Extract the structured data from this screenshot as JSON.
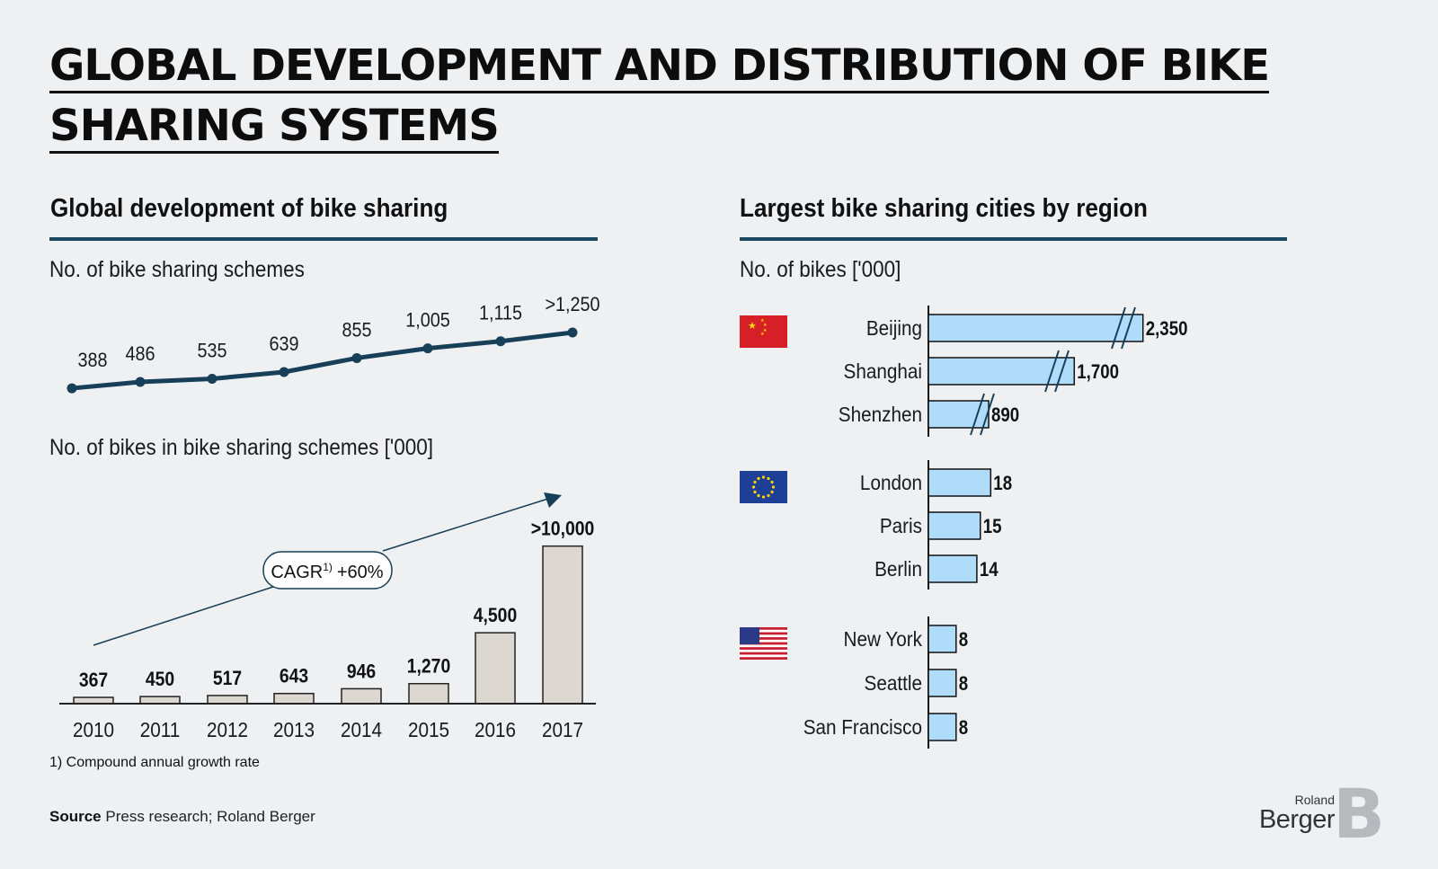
{
  "title_line1": "GLOBAL DEVELOPMENT AND DISTRIBUTION OF BIKE",
  "title_line2": "SHARING SYSTEMS",
  "left": {
    "heading": "Global development of bike sharing",
    "schemes_label": "No. of bike sharing schemes",
    "bikes_label": "No. of bikes in bike sharing schemes ['000]",
    "cagr_label": "CAGR",
    "cagr_sup": "1)",
    "cagr_value": "+60%",
    "footnote": "1) Compound annual growth rate"
  },
  "right": {
    "heading": "Largest bike sharing cities by region",
    "bikes_label": "No. of bikes ['000]"
  },
  "source_label": "Source",
  "source_text": "Press research; Roland Berger",
  "logo": {
    "roland": "Roland",
    "berger": "Berger",
    "mark": "B"
  },
  "colors": {
    "line": "#173f57",
    "bar_left": "#ddd7d2",
    "bar_right": "#aedcf9",
    "rule": "#1a4660"
  },
  "chart_data": [
    {
      "type": "line",
      "title": "No. of bike sharing schemes",
      "x": [
        "2010",
        "2011",
        "2012",
        "2013",
        "2014",
        "2015",
        "2016",
        "2017"
      ],
      "values": [
        388,
        486,
        535,
        639,
        855,
        1005,
        1115,
        1250
      ],
      "labels": [
        "388",
        "486",
        "535",
        "639",
        "855",
        "1,005",
        "1,115",
        ">1,250"
      ]
    },
    {
      "type": "bar",
      "title": "No. of bikes in bike sharing schemes ['000]",
      "categories": [
        "2010",
        "2011",
        "2012",
        "2013",
        "2014",
        "2015",
        "2016",
        "2017"
      ],
      "values": [
        367,
        450,
        517,
        643,
        946,
        1270,
        4500,
        10000
      ],
      "labels": [
        "367",
        "450",
        "517",
        "643",
        "946",
        "1,270",
        "4,500",
        ">10,000"
      ],
      "annotation": "CAGR 1) +60%"
    },
    {
      "type": "bar",
      "orientation": "horizontal",
      "title": "Largest bike sharing cities by region",
      "ylabel": "No. of bikes ['000]",
      "groups": [
        {
          "region": "China",
          "flag": "china-flag-icon",
          "cities": [
            {
              "name": "Beijing",
              "value": 2350,
              "label": "2,350",
              "axis_break": true
            },
            {
              "name": "Shanghai",
              "value": 1700,
              "label": "1,700",
              "axis_break": true
            },
            {
              "name": "Shenzhen",
              "value": 890,
              "label": "890",
              "axis_break": true
            }
          ]
        },
        {
          "region": "Europe",
          "flag": "eu-flag-icon",
          "cities": [
            {
              "name": "London",
              "value": 18,
              "label": "18"
            },
            {
              "name": "Paris",
              "value": 15,
              "label": "15"
            },
            {
              "name": "Berlin",
              "value": 14,
              "label": "14"
            }
          ]
        },
        {
          "region": "USA",
          "flag": "us-flag-icon",
          "cities": [
            {
              "name": "New York",
              "value": 8,
              "label": "8"
            },
            {
              "name": "Seattle",
              "value": 8,
              "label": "8"
            },
            {
              "name": "San Francisco",
              "value": 8,
              "label": "8"
            }
          ]
        }
      ]
    }
  ]
}
